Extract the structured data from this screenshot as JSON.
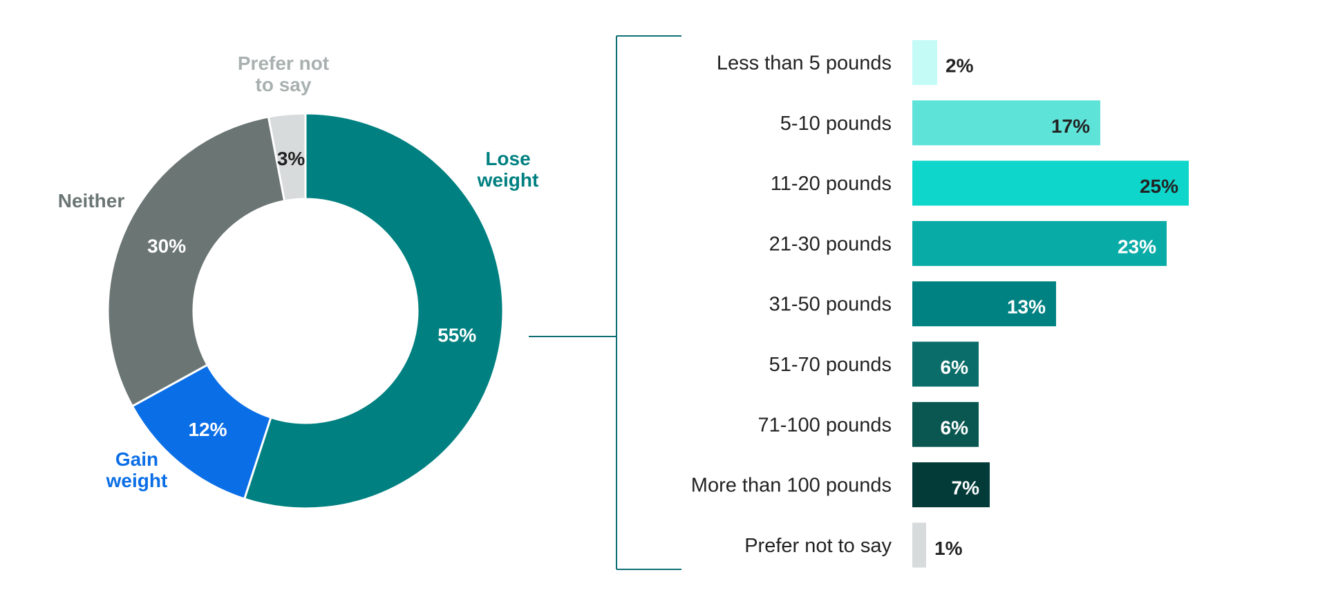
{
  "chart_data": [
    {
      "type": "pie",
      "donut": true,
      "slices": [
        {
          "label": "Lose weight",
          "label_lines": [
            "Lose",
            "weight"
          ],
          "value": 55,
          "value_text": "55%",
          "color": "#008080",
          "label_color": "#008080",
          "value_color": "#ffffff"
        },
        {
          "label": "Gain weight",
          "label_lines": [
            "Gain",
            "weight"
          ],
          "value": 12,
          "value_text": "12%",
          "color": "#0a6ee6",
          "label_color": "#0a6ee6",
          "value_color": "#ffffff"
        },
        {
          "label": "Neither",
          "label_lines": [
            "Neither"
          ],
          "value": 30,
          "value_text": "30%",
          "color": "#6b7574",
          "label_color": "#6b7574",
          "value_color": "#ffffff"
        },
        {
          "label": "Prefer not to say",
          "label_lines": [
            "Prefer not",
            "to say"
          ],
          "value": 3,
          "value_text": "3%",
          "color": "#d7dbdb",
          "label_color": "#a9b0b0",
          "value_color": "#222222"
        }
      ]
    },
    {
      "type": "bar",
      "orientation": "horizontal",
      "categories": [
        "Less than 5 pounds",
        "5-10 pounds",
        "11-20 pounds",
        "21-30 pounds",
        "31-50 pounds",
        "51-70 pounds",
        "71-100 pounds",
        "More than 100 pounds",
        "Prefer not to say"
      ],
      "values": [
        2,
        17,
        25,
        23,
        13,
        6,
        6,
        7,
        1
      ],
      "value_texts": [
        "2%",
        "17%",
        "25%",
        "23%",
        "13%",
        "6%",
        "6%",
        "7%",
        "1%"
      ],
      "colors": [
        "#c4fbf6",
        "#5ee3d9",
        "#0ed6cb",
        "#09aba7",
        "#018282",
        "#0b6d6a",
        "#0a5651",
        "#023b38",
        "#d7dbdb"
      ],
      "value_colors": [
        "#222222",
        "#222222",
        "#222222",
        "#ffffff",
        "#ffffff",
        "#ffffff",
        "#ffffff",
        "#ffffff",
        "#222222"
      ],
      "value_inside": [
        false,
        true,
        true,
        true,
        true,
        true,
        true,
        true,
        false
      ]
    }
  ]
}
